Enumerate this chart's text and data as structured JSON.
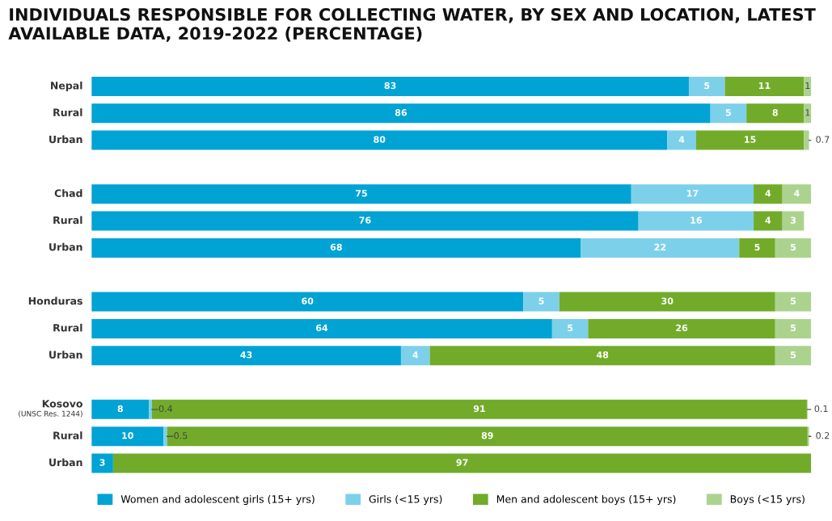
{
  "chart_data": {
    "type": "bar",
    "orientation": "horizontal",
    "stacked": true,
    "title": "INDIVIDUALS RESPONSIBLE FOR COLLECTING WATER, BY SEX AND LOCATION, LATEST AVAILABLE DATA, 2019-2022 (PERCENTAGE)",
    "categories": [
      "Nepal",
      "Rural",
      "Urban",
      null,
      "Chad",
      "Rural",
      "Urban",
      null,
      "Honduras",
      "Rural",
      "Urban",
      null,
      "Kosovo\n(UNSC Res. 1244)",
      "Rural",
      "Urban"
    ],
    "series": [
      {
        "name": "Women and adolescent girls (15+ yrs)",
        "color": "#00a3d4",
        "values": [
          83,
          86,
          80,
          null,
          75,
          76,
          68,
          null,
          60,
          64,
          43,
          null,
          8,
          10,
          3
        ]
      },
      {
        "name": "Girls (<15 yrs)",
        "color": "#7dd0ea",
        "values": [
          5,
          5,
          4,
          null,
          17,
          16,
          22,
          null,
          5,
          5,
          4,
          null,
          0.4,
          0.5,
          null
        ]
      },
      {
        "name": "Men and adolescent boys (15+ yrs)",
        "color": "#72ab2a",
        "values": [
          11,
          8,
          15,
          null,
          4,
          4,
          5,
          null,
          30,
          26,
          48,
          null,
          91,
          89,
          97
        ]
      },
      {
        "name": "Boys (<15 yrs)",
        "color": "#acd38e",
        "values": [
          1,
          1,
          0.7,
          null,
          4,
          3,
          5,
          null,
          5,
          5,
          5,
          null,
          0.1,
          0.2,
          null
        ]
      }
    ],
    "xlim": [
      0,
      100
    ],
    "tick_labels": "y",
    "data_labels": true,
    "legend": "bottom",
    "grid": false
  }
}
